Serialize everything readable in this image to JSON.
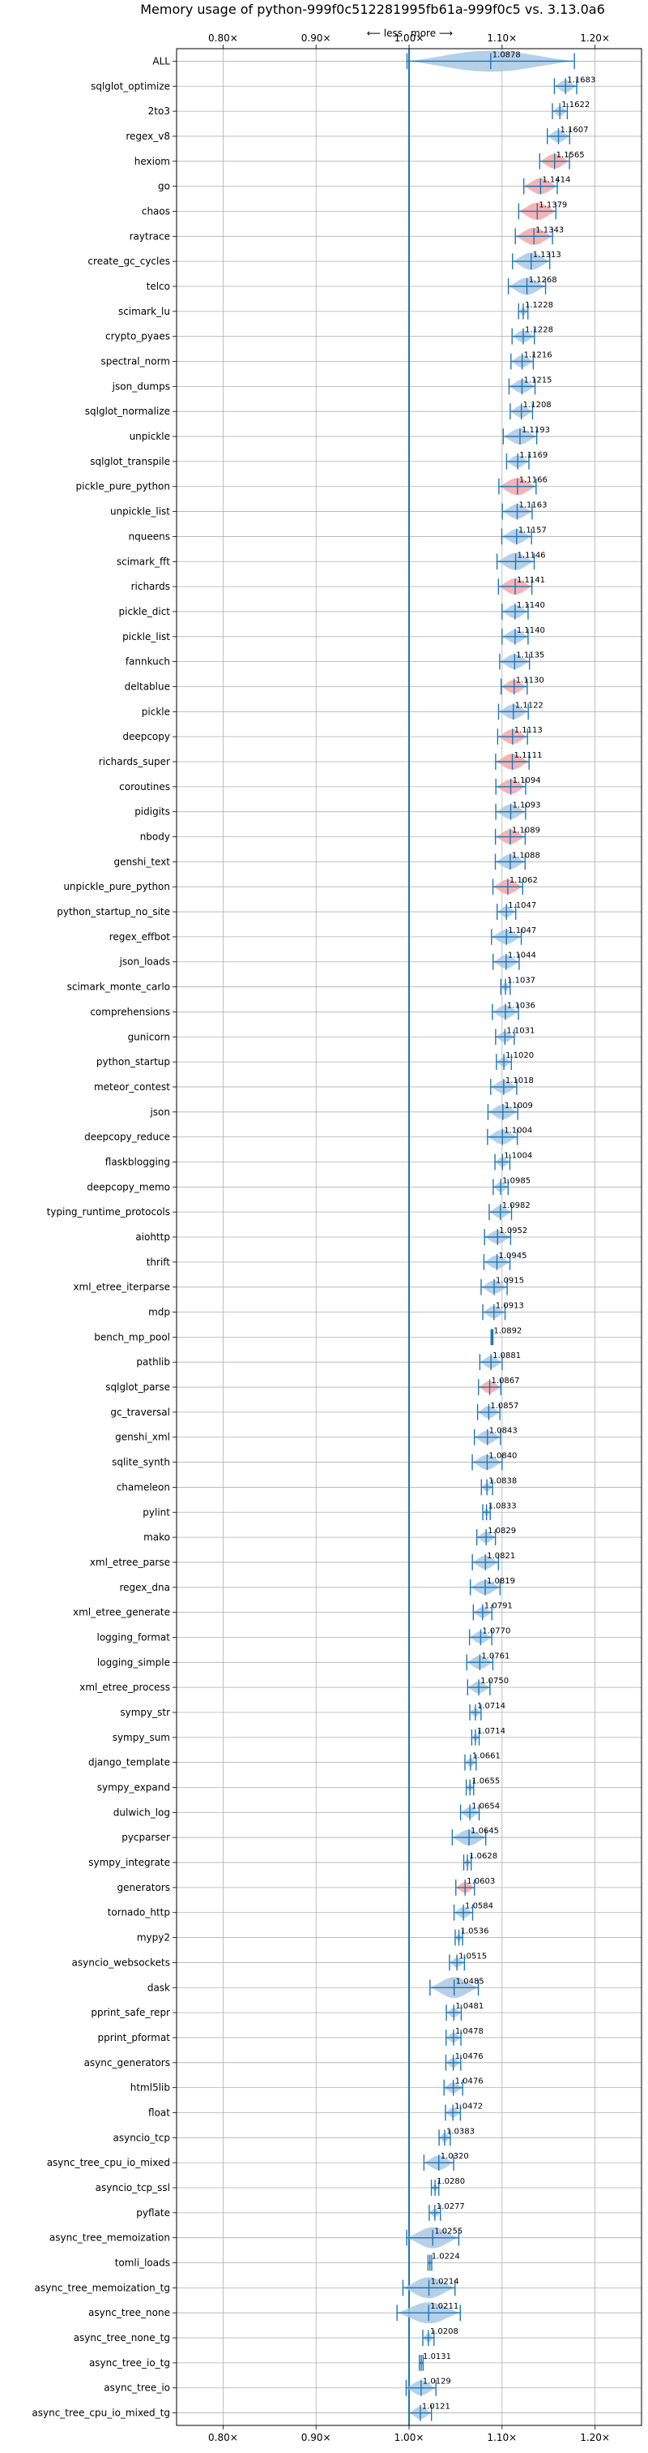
{
  "chart_data": {
    "type": "violin",
    "title": "Memory usage of python-999f0c512281995fb61a-999f0c5 vs. 3.13.0a6",
    "direction_less": "⟵ less",
    "direction_more": "more ⟶",
    "xlim": [
      0.75,
      1.25
    ],
    "xticks": [
      0.8,
      0.9,
      1.0,
      1.1,
      1.2
    ],
    "xtick_labels": [
      "0.80×",
      "0.90×",
      "1.00×",
      "1.10×",
      "1.20×"
    ],
    "reference_x": 1.0,
    "grid": true,
    "colors": {
      "default": "#1f77b4",
      "default_fill": "#a9c8e4",
      "highlight_fill": "#f4a6a6",
      "reference_line": "#1f77b4"
    },
    "benchmarks": [
      {
        "name": "ALL",
        "value": 1.0878,
        "label": "1.0878",
        "spread": 0.09,
        "highlight": false
      },
      {
        "name": "sqlglot_optimize",
        "value": 1.1683,
        "label": "1.1683",
        "spread": 0.012,
        "highlight": false
      },
      {
        "name": "2to3",
        "value": 1.1622,
        "label": "1.1622",
        "spread": 0.008,
        "highlight": false
      },
      {
        "name": "regex_v8",
        "value": 1.1607,
        "label": "1.1607",
        "spread": 0.012,
        "highlight": false
      },
      {
        "name": "hexiom",
        "value": 1.1565,
        "label": "1.1565",
        "spread": 0.016,
        "highlight": true
      },
      {
        "name": "go",
        "value": 1.1414,
        "label": "1.1414",
        "spread": 0.018,
        "highlight": true
      },
      {
        "name": "chaos",
        "value": 1.1379,
        "label": "1.1379",
        "spread": 0.02,
        "highlight": true
      },
      {
        "name": "raytrace",
        "value": 1.1343,
        "label": "1.1343",
        "spread": 0.02,
        "highlight": true
      },
      {
        "name": "create_gc_cycles",
        "value": 1.1313,
        "label": "1.1313",
        "spread": 0.02,
        "highlight": false
      },
      {
        "name": "telco",
        "value": 1.1268,
        "label": "1.1268",
        "spread": 0.02,
        "highlight": false
      },
      {
        "name": "scimark_lu",
        "value": 1.1228,
        "label": "1.1228",
        "spread": 0.005,
        "highlight": false
      },
      {
        "name": "crypto_pyaes",
        "value": 1.1228,
        "label": "1.1228",
        "spread": 0.012,
        "highlight": false
      },
      {
        "name": "spectral_norm",
        "value": 1.1216,
        "label": "1.1216",
        "spread": 0.012,
        "highlight": false
      },
      {
        "name": "json_dumps",
        "value": 1.1215,
        "label": "1.1215",
        "spread": 0.014,
        "highlight": false
      },
      {
        "name": "sqlglot_normalize",
        "value": 1.1208,
        "label": "1.1208",
        "spread": 0.012,
        "highlight": false
      },
      {
        "name": "unpickle",
        "value": 1.1193,
        "label": "1.1193",
        "spread": 0.018,
        "highlight": false
      },
      {
        "name": "sqlglot_transpile",
        "value": 1.1169,
        "label": "1.1169",
        "spread": 0.012,
        "highlight": false
      },
      {
        "name": "pickle_pure_python",
        "value": 1.1166,
        "label": "1.1166",
        "spread": 0.02,
        "highlight": true
      },
      {
        "name": "unpickle_list",
        "value": 1.1163,
        "label": "1.1163",
        "spread": 0.016,
        "highlight": false
      },
      {
        "name": "nqueens",
        "value": 1.1157,
        "label": "1.1157",
        "spread": 0.016,
        "highlight": false
      },
      {
        "name": "scimark_fft",
        "value": 1.1146,
        "label": "1.1146",
        "spread": 0.02,
        "highlight": false
      },
      {
        "name": "richards",
        "value": 1.1141,
        "label": "1.1141",
        "spread": 0.018,
        "highlight": true
      },
      {
        "name": "pickle_dict",
        "value": 1.114,
        "label": "1.1140",
        "spread": 0.014,
        "highlight": false
      },
      {
        "name": "pickle_list",
        "value": 1.114,
        "label": "1.1140",
        "spread": 0.014,
        "highlight": false
      },
      {
        "name": "fannkuch",
        "value": 1.1135,
        "label": "1.1135",
        "spread": 0.016,
        "highlight": false
      },
      {
        "name": "deltablue",
        "value": 1.113,
        "label": "1.1130",
        "spread": 0.014,
        "highlight": true
      },
      {
        "name": "pickle",
        "value": 1.1122,
        "label": "1.1122",
        "spread": 0.016,
        "highlight": false
      },
      {
        "name": "deepcopy",
        "value": 1.1113,
        "label": "1.1113",
        "spread": 0.016,
        "highlight": true
      },
      {
        "name": "richards_super",
        "value": 1.1111,
        "label": "1.1111",
        "spread": 0.018,
        "highlight": true
      },
      {
        "name": "coroutines",
        "value": 1.1094,
        "label": "1.1094",
        "spread": 0.016,
        "highlight": true
      },
      {
        "name": "pidigits",
        "value": 1.1093,
        "label": "1.1093",
        "spread": 0.016,
        "highlight": false
      },
      {
        "name": "nbody",
        "value": 1.1089,
        "label": "1.1089",
        "spread": 0.016,
        "highlight": true
      },
      {
        "name": "genshi_text",
        "value": 1.1088,
        "label": "1.1088",
        "spread": 0.016,
        "highlight": false
      },
      {
        "name": "unpickle_pure_python",
        "value": 1.1062,
        "label": "1.1062",
        "spread": 0.016,
        "highlight": true
      },
      {
        "name": "python_startup_no_site",
        "value": 1.1047,
        "label": "1.1047",
        "spread": 0.01,
        "highlight": false
      },
      {
        "name": "regex_effbot",
        "value": 1.1047,
        "label": "1.1047",
        "spread": 0.016,
        "highlight": false
      },
      {
        "name": "json_loads",
        "value": 1.1044,
        "label": "1.1044",
        "spread": 0.014,
        "highlight": false
      },
      {
        "name": "scimark_monte_carlo",
        "value": 1.1037,
        "label": "1.1037",
        "spread": 0.005,
        "highlight": false
      },
      {
        "name": "comprehensions",
        "value": 1.1036,
        "label": "1.1036",
        "spread": 0.014,
        "highlight": false
      },
      {
        "name": "gunicorn",
        "value": 1.1031,
        "label": "1.1031",
        "spread": 0.01,
        "highlight": false
      },
      {
        "name": "python_startup",
        "value": 1.102,
        "label": "1.1020",
        "spread": 0.008,
        "highlight": false
      },
      {
        "name": "meteor_contest",
        "value": 1.1018,
        "label": "1.1018",
        "spread": 0.014,
        "highlight": false
      },
      {
        "name": "json",
        "value": 1.1009,
        "label": "1.1009",
        "spread": 0.016,
        "highlight": false
      },
      {
        "name": "deepcopy_reduce",
        "value": 1.1004,
        "label": "1.1004",
        "spread": 0.016,
        "highlight": false
      },
      {
        "name": "flaskblogging",
        "value": 1.1004,
        "label": "1.1004",
        "spread": 0.008,
        "highlight": false
      },
      {
        "name": "deepcopy_memo",
        "value": 1.0985,
        "label": "1.0985",
        "spread": 0.008,
        "highlight": false
      },
      {
        "name": "typing_runtime_protocols",
        "value": 1.0982,
        "label": "1.0982",
        "spread": 0.012,
        "highlight": false
      },
      {
        "name": "aiohttp",
        "value": 1.0952,
        "label": "1.0952",
        "spread": 0.014,
        "highlight": false
      },
      {
        "name": "thrift",
        "value": 1.0945,
        "label": "1.0945",
        "spread": 0.014,
        "highlight": false
      },
      {
        "name": "xml_etree_iterparse",
        "value": 1.0915,
        "label": "1.0915",
        "spread": 0.014,
        "highlight": false
      },
      {
        "name": "mdp",
        "value": 1.0913,
        "label": "1.0913",
        "spread": 0.012,
        "highlight": false
      },
      {
        "name": "bench_mp_pool",
        "value": 1.0892,
        "label": "1.0892",
        "spread": 0.001,
        "highlight": false
      },
      {
        "name": "pathlib",
        "value": 1.0881,
        "label": "1.0881",
        "spread": 0.012,
        "highlight": false
      },
      {
        "name": "sqlglot_parse",
        "value": 1.0867,
        "label": "1.0867",
        "spread": 0.012,
        "highlight": true
      },
      {
        "name": "gc_traversal",
        "value": 1.0857,
        "label": "1.0857",
        "spread": 0.012,
        "highlight": false
      },
      {
        "name": "genshi_xml",
        "value": 1.0843,
        "label": "1.0843",
        "spread": 0.014,
        "highlight": false
      },
      {
        "name": "sqlite_synth",
        "value": 1.084,
        "label": "1.0840",
        "spread": 0.016,
        "highlight": false
      },
      {
        "name": "chameleon",
        "value": 1.0838,
        "label": "1.0838",
        "spread": 0.006,
        "highlight": false
      },
      {
        "name": "pylint",
        "value": 1.0833,
        "label": "1.0833",
        "spread": 0.004,
        "highlight": false
      },
      {
        "name": "mako",
        "value": 1.0829,
        "label": "1.0829",
        "spread": 0.01,
        "highlight": false
      },
      {
        "name": "xml_etree_parse",
        "value": 1.0821,
        "label": "1.0821",
        "spread": 0.014,
        "highlight": false
      },
      {
        "name": "regex_dna",
        "value": 1.0819,
        "label": "1.0819",
        "spread": 0.016,
        "highlight": false
      },
      {
        "name": "xml_etree_generate",
        "value": 1.0791,
        "label": "1.0791",
        "spread": 0.01,
        "highlight": false
      },
      {
        "name": "logging_format",
        "value": 1.077,
        "label": "1.0770",
        "spread": 0.012,
        "highlight": false
      },
      {
        "name": "logging_simple",
        "value": 1.0761,
        "label": "1.0761",
        "spread": 0.014,
        "highlight": false
      },
      {
        "name": "xml_etree_process",
        "value": 1.075,
        "label": "1.0750",
        "spread": 0.012,
        "highlight": false
      },
      {
        "name": "sympy_str",
        "value": 1.0714,
        "label": "1.0714",
        "spread": 0.006,
        "highlight": false
      },
      {
        "name": "sympy_sum",
        "value": 1.0714,
        "label": "1.0714",
        "spread": 0.004,
        "highlight": false
      },
      {
        "name": "django_template",
        "value": 1.0661,
        "label": "1.0661",
        "spread": 0.006,
        "highlight": false
      },
      {
        "name": "sympy_expand",
        "value": 1.0655,
        "label": "1.0655",
        "spread": 0.004,
        "highlight": false
      },
      {
        "name": "dulwich_log",
        "value": 1.0654,
        "label": "1.0654",
        "spread": 0.01,
        "highlight": false
      },
      {
        "name": "pycparser",
        "value": 1.0645,
        "label": "1.0645",
        "spread": 0.018,
        "highlight": false
      },
      {
        "name": "sympy_integrate",
        "value": 1.0628,
        "label": "1.0628",
        "spread": 0.004,
        "highlight": false
      },
      {
        "name": "generators",
        "value": 1.0603,
        "label": "1.0603",
        "spread": 0.01,
        "highlight": true
      },
      {
        "name": "tornado_http",
        "value": 1.0584,
        "label": "1.0584",
        "spread": 0.01,
        "highlight": false
      },
      {
        "name": "mypy2",
        "value": 1.0536,
        "label": "1.0536",
        "spread": 0.004,
        "highlight": false
      },
      {
        "name": "asyncio_websockets",
        "value": 1.0515,
        "label": "1.0515",
        "spread": 0.008,
        "highlight": false
      },
      {
        "name": "dask",
        "value": 1.0485,
        "label": "1.0485",
        "spread": 0.026,
        "highlight": false
      },
      {
        "name": "pprint_safe_repr",
        "value": 1.0481,
        "label": "1.0481",
        "spread": 0.008,
        "highlight": false
      },
      {
        "name": "pprint_pformat",
        "value": 1.0478,
        "label": "1.0478",
        "spread": 0.008,
        "highlight": false
      },
      {
        "name": "async_generators",
        "value": 1.0476,
        "label": "1.0476",
        "spread": 0.008,
        "highlight": false
      },
      {
        "name": "html5lib",
        "value": 1.0476,
        "label": "1.0476",
        "spread": 0.01,
        "highlight": false
      },
      {
        "name": "float",
        "value": 1.0472,
        "label": "1.0472",
        "spread": 0.008,
        "highlight": false
      },
      {
        "name": "asyncio_tcp",
        "value": 1.0383,
        "label": "1.0383",
        "spread": 0.006,
        "highlight": false
      },
      {
        "name": "async_tree_cpu_io_mixed",
        "value": 1.032,
        "label": "1.0320",
        "spread": 0.016,
        "highlight": false
      },
      {
        "name": "asyncio_tcp_ssl",
        "value": 1.028,
        "label": "1.0280",
        "spread": 0.004,
        "highlight": false
      },
      {
        "name": "pyflate",
        "value": 1.0277,
        "label": "1.0277",
        "spread": 0.006,
        "highlight": false
      },
      {
        "name": "async_tree_memoization",
        "value": 1.0255,
        "label": "1.0255",
        "spread": 0.028,
        "highlight": false
      },
      {
        "name": "tomli_loads",
        "value": 1.0224,
        "label": "1.0224",
        "spread": 0.002,
        "highlight": false
      },
      {
        "name": "async_tree_memoization_tg",
        "value": 1.0214,
        "label": "1.0214",
        "spread": 0.028,
        "highlight": false
      },
      {
        "name": "async_tree_none",
        "value": 1.0211,
        "label": "1.0211",
        "spread": 0.034,
        "highlight": false
      },
      {
        "name": "async_tree_none_tg",
        "value": 1.0208,
        "label": "1.0208",
        "spread": 0.006,
        "highlight": false
      },
      {
        "name": "async_tree_io_tg",
        "value": 1.0131,
        "label": "1.0131",
        "spread": 0.002,
        "highlight": false
      },
      {
        "name": "async_tree_io",
        "value": 1.0129,
        "label": "1.0129",
        "spread": 0.016,
        "highlight": false
      },
      {
        "name": "async_tree_cpu_io_mixed_tg",
        "value": 1.0121,
        "label": "1.0121",
        "spread": 0.012,
        "highlight": false
      }
    ]
  }
}
